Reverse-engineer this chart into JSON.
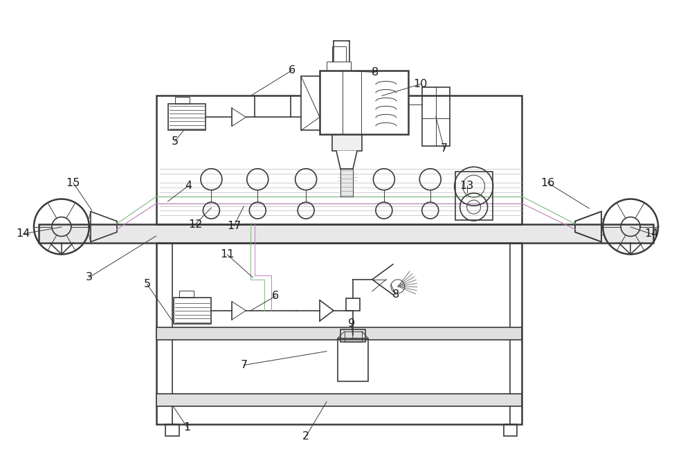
{
  "bg_color": "#ffffff",
  "lc": "#3a3a3a",
  "lc2": "#888888",
  "green": "#80b880",
  "purple": "#b880b8",
  "fig_width": 10.0,
  "fig_height": 6.56,
  "dpi": 100
}
